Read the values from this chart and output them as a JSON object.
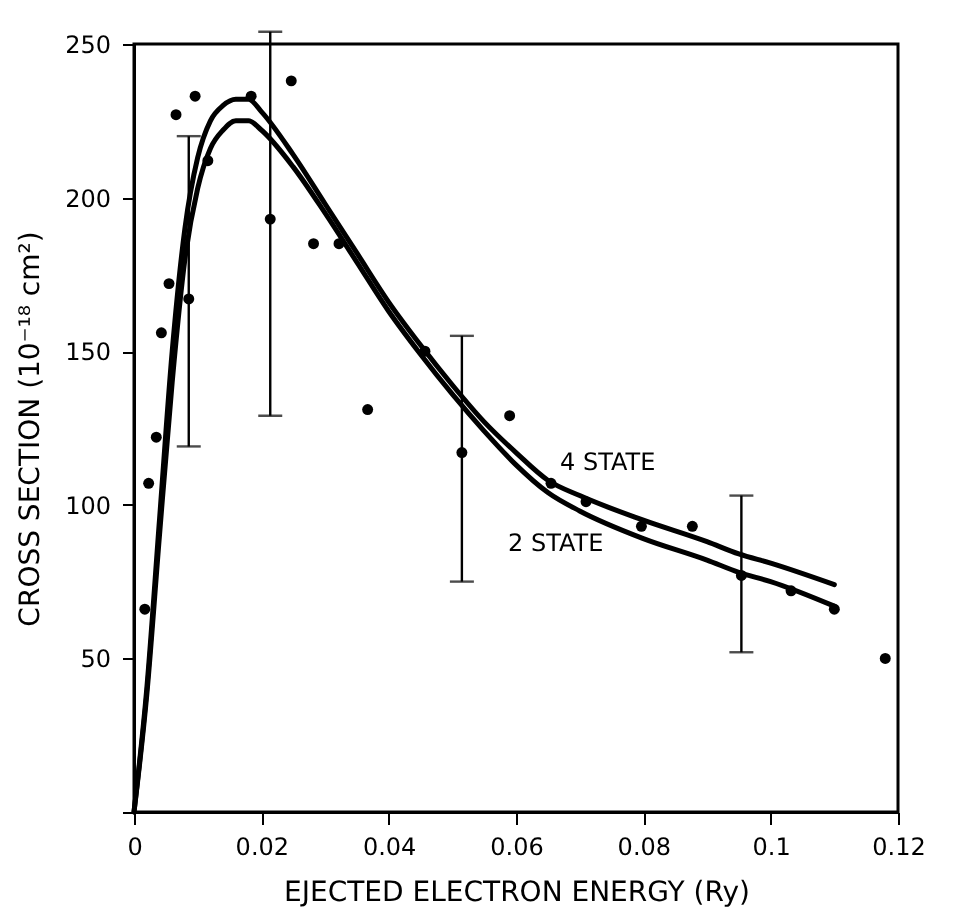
{
  "chart_data": {
    "type": "line",
    "xlabel": "EJECTED ELECTRON ENERGY (Ry)",
    "ylabel": "CROSS SECTION (10⁻¹⁸ cm²)",
    "xlim": [
      0,
      0.12
    ],
    "xticks": [
      0,
      0.02,
      0.04,
      0.06,
      0.08,
      0.1,
      0.12
    ],
    "ylim": [
      0,
      250
    ],
    "yticks": [
      {
        "value": 0,
        "label": null
      },
      50,
      100,
      150,
      200,
      250
    ],
    "line_style": "solid",
    "series": [
      {
        "name": "4 STATE",
        "type": "line",
        "marker": "none",
        "color": "#000000",
        "x": [
          0,
          0.002,
          0.004,
          0.006,
          0.008,
          0.01,
          0.012,
          0.014,
          0.016,
          0.018,
          0.02,
          0.025,
          0.03,
          0.035,
          0.04,
          0.045,
          0.05,
          0.055,
          0.06,
          0.065,
          0.07,
          0.08,
          0.09,
          0.095,
          0.1,
          0.11
        ],
        "values": [
          0,
          40,
          95,
          150,
          190,
          213,
          225,
          230,
          232,
          232,
          228,
          214,
          198,
          182,
          166,
          152,
          139,
          127,
          117,
          108,
          103,
          95,
          88,
          84,
          81,
          74
        ]
      },
      {
        "name": "2 STATE",
        "type": "line",
        "marker": "none",
        "color": "#000000",
        "x": [
          0,
          0.002,
          0.004,
          0.006,
          0.008,
          0.01,
          0.012,
          0.014,
          0.016,
          0.018,
          0.02,
          0.025,
          0.03,
          0.035,
          0.04,
          0.045,
          0.05,
          0.055,
          0.06,
          0.065,
          0.07,
          0.08,
          0.09,
          0.095,
          0.1,
          0.11
        ],
        "values": [
          0,
          38,
          90,
          140,
          180,
          203,
          216,
          222,
          225,
          225,
          222,
          210,
          195,
          179,
          163,
          149,
          136,
          124,
          113,
          104,
          98,
          89,
          82,
          78,
          75,
          67
        ]
      },
      {
        "type": "scatter",
        "marker": "circle",
        "color": "#000000",
        "x": [
          0.0017,
          0.0023,
          0.0035,
          0.0043,
          0.0055,
          0.0066,
          0.0086,
          0.0096,
          0.0116,
          0.0184,
          0.0214,
          0.0247,
          0.0282,
          0.0322,
          0.0367,
          0.0457,
          0.0515,
          0.059,
          0.0655,
          0.071,
          0.0797,
          0.0877,
          0.0954,
          0.1032,
          0.11,
          0.118
        ],
        "values": [
          66,
          107,
          122,
          156,
          172,
          227,
          167,
          233,
          212,
          233,
          193,
          238,
          185,
          185,
          131,
          150,
          117,
          129,
          107,
          101,
          93,
          93,
          77,
          72,
          66,
          50
        ],
        "errors": [
          null,
          null,
          null,
          null,
          null,
          null,
          [
            119,
            220
          ],
          null,
          null,
          null,
          [
            129,
            254
          ],
          null,
          null,
          null,
          null,
          null,
          [
            75,
            155
          ],
          null,
          null,
          null,
          null,
          null,
          [
            52,
            103
          ],
          null,
          null,
          null
        ]
      }
    ]
  }
}
